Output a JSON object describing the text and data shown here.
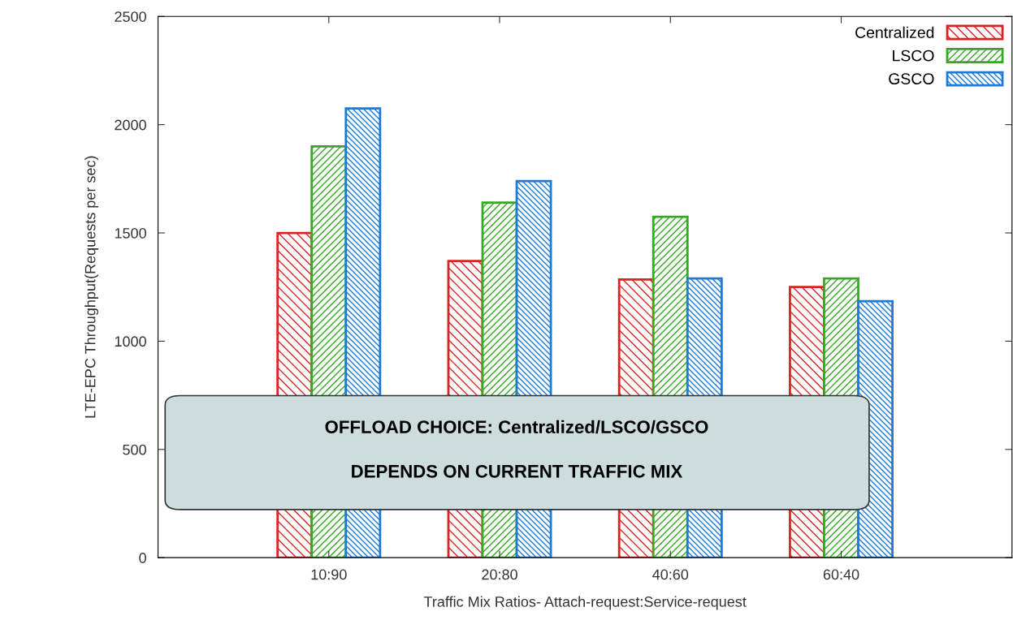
{
  "chart_data": {
    "type": "bar",
    "xlabel": "Traffic Mix Ratios- Attach-request:Service-request",
    "ylabel": "LTE-EPC Throughput(Requests per sec)",
    "categories": [
      "10:90",
      "20:80",
      "40:60",
      "60:40"
    ],
    "series": [
      {
        "name": "Centralized",
        "color": "#dd2222",
        "values": [
          1500,
          1370,
          1285,
          1250
        ]
      },
      {
        "name": "LSCO",
        "color": "#33aa22",
        "values": [
          1900,
          1640,
          1575,
          1290
        ]
      },
      {
        "name": "GSCO",
        "color": "#1e7ad6",
        "values": [
          2075,
          1740,
          1290,
          1185
        ]
      }
    ],
    "ylim": [
      0,
      2500
    ],
    "yticks": [
      0,
      500,
      1000,
      1500,
      2000,
      2500
    ],
    "grid": false,
    "legend": "top right",
    "annotations": [
      "OFFLOAD CHOICE: Centralized/LSCO/GSCO",
      "DEPENDS ON CURRENT TRAFFIC MIX"
    ]
  }
}
